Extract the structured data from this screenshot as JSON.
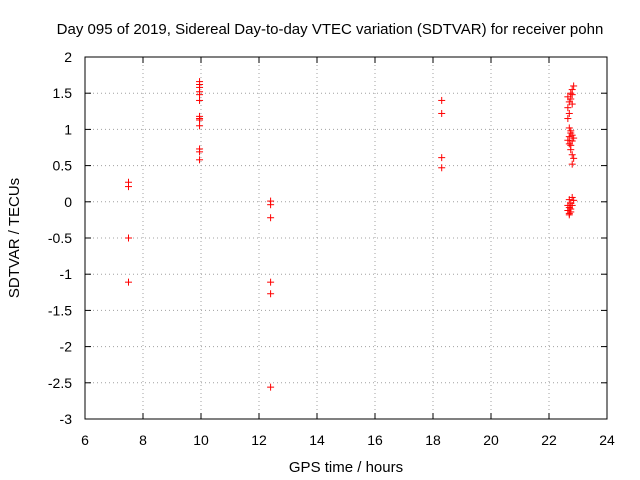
{
  "chart_data": {
    "type": "scatter",
    "title": "Day 095 of 2019, Sidereal Day-to-day VTEC variation (SDTVAR) for receiver pohn",
    "xlabel": "GPS time / hours",
    "ylabel": "SDTVAR / TECUs",
    "xlim": [
      6,
      24
    ],
    "ylim": [
      -3,
      2
    ],
    "xticks": [
      6,
      8,
      10,
      12,
      14,
      16,
      18,
      20,
      22,
      24
    ],
    "yticks": [
      -3,
      -2.5,
      -2,
      -1.5,
      -1,
      -0.5,
      0,
      0.5,
      1,
      1.5,
      2
    ],
    "grid": true,
    "marker": "+",
    "color": "#ff0000",
    "series": [
      {
        "name": "SDTVAR",
        "points": [
          [
            7.5,
            0.27
          ],
          [
            7.5,
            0.21
          ],
          [
            7.5,
            -0.5
          ],
          [
            7.5,
            -1.11
          ],
          [
            9.95,
            1.66
          ],
          [
            9.95,
            1.62
          ],
          [
            9.95,
            1.58
          ],
          [
            9.95,
            1.52
          ],
          [
            9.95,
            1.48
          ],
          [
            9.95,
            1.4
          ],
          [
            9.95,
            1.18
          ],
          [
            9.95,
            1.15
          ],
          [
            9.95,
            1.13
          ],
          [
            9.95,
            1.05
          ],
          [
            9.95,
            0.73
          ],
          [
            9.95,
            0.69
          ],
          [
            9.95,
            0.58
          ],
          [
            12.4,
            0.01
          ],
          [
            12.4,
            -0.04
          ],
          [
            12.4,
            -0.22
          ],
          [
            12.4,
            -1.11
          ],
          [
            12.4,
            -1.27
          ],
          [
            12.4,
            -2.56
          ],
          [
            18.3,
            1.4
          ],
          [
            18.3,
            1.22
          ],
          [
            18.3,
            0.61
          ],
          [
            18.3,
            0.47
          ],
          [
            22.65,
            1.45
          ],
          [
            22.7,
            1.38
          ],
          [
            22.65,
            1.3
          ],
          [
            22.7,
            1.22
          ],
          [
            22.65,
            1.15
          ],
          [
            22.75,
            1.5
          ],
          [
            22.8,
            1.55
          ],
          [
            22.85,
            1.6
          ],
          [
            22.8,
            1.48
          ],
          [
            22.75,
            1.42
          ],
          [
            22.8,
            1.35
          ],
          [
            22.7,
            1.02
          ],
          [
            22.75,
            0.95
          ],
          [
            22.7,
            0.9
          ],
          [
            22.65,
            0.85
          ],
          [
            22.7,
            0.8
          ],
          [
            22.75,
            0.78
          ],
          [
            22.8,
            0.92
          ],
          [
            22.85,
            0.88
          ],
          [
            22.8,
            0.84
          ],
          [
            22.75,
            0.72
          ],
          [
            22.8,
            0.65
          ],
          [
            22.85,
            0.6
          ],
          [
            22.8,
            0.52
          ],
          [
            22.75,
            0.98
          ],
          [
            22.7,
            0.03
          ],
          [
            22.75,
            -0.02
          ],
          [
            22.65,
            -0.05
          ],
          [
            22.7,
            -0.08
          ],
          [
            22.65,
            -0.12
          ],
          [
            22.7,
            -0.16
          ],
          [
            22.75,
            -0.1
          ],
          [
            22.8,
            -0.05
          ],
          [
            22.85,
            0.02
          ],
          [
            22.8,
            0.06
          ],
          [
            22.75,
            -0.14
          ],
          [
            22.7,
            -0.18
          ]
        ]
      }
    ]
  }
}
